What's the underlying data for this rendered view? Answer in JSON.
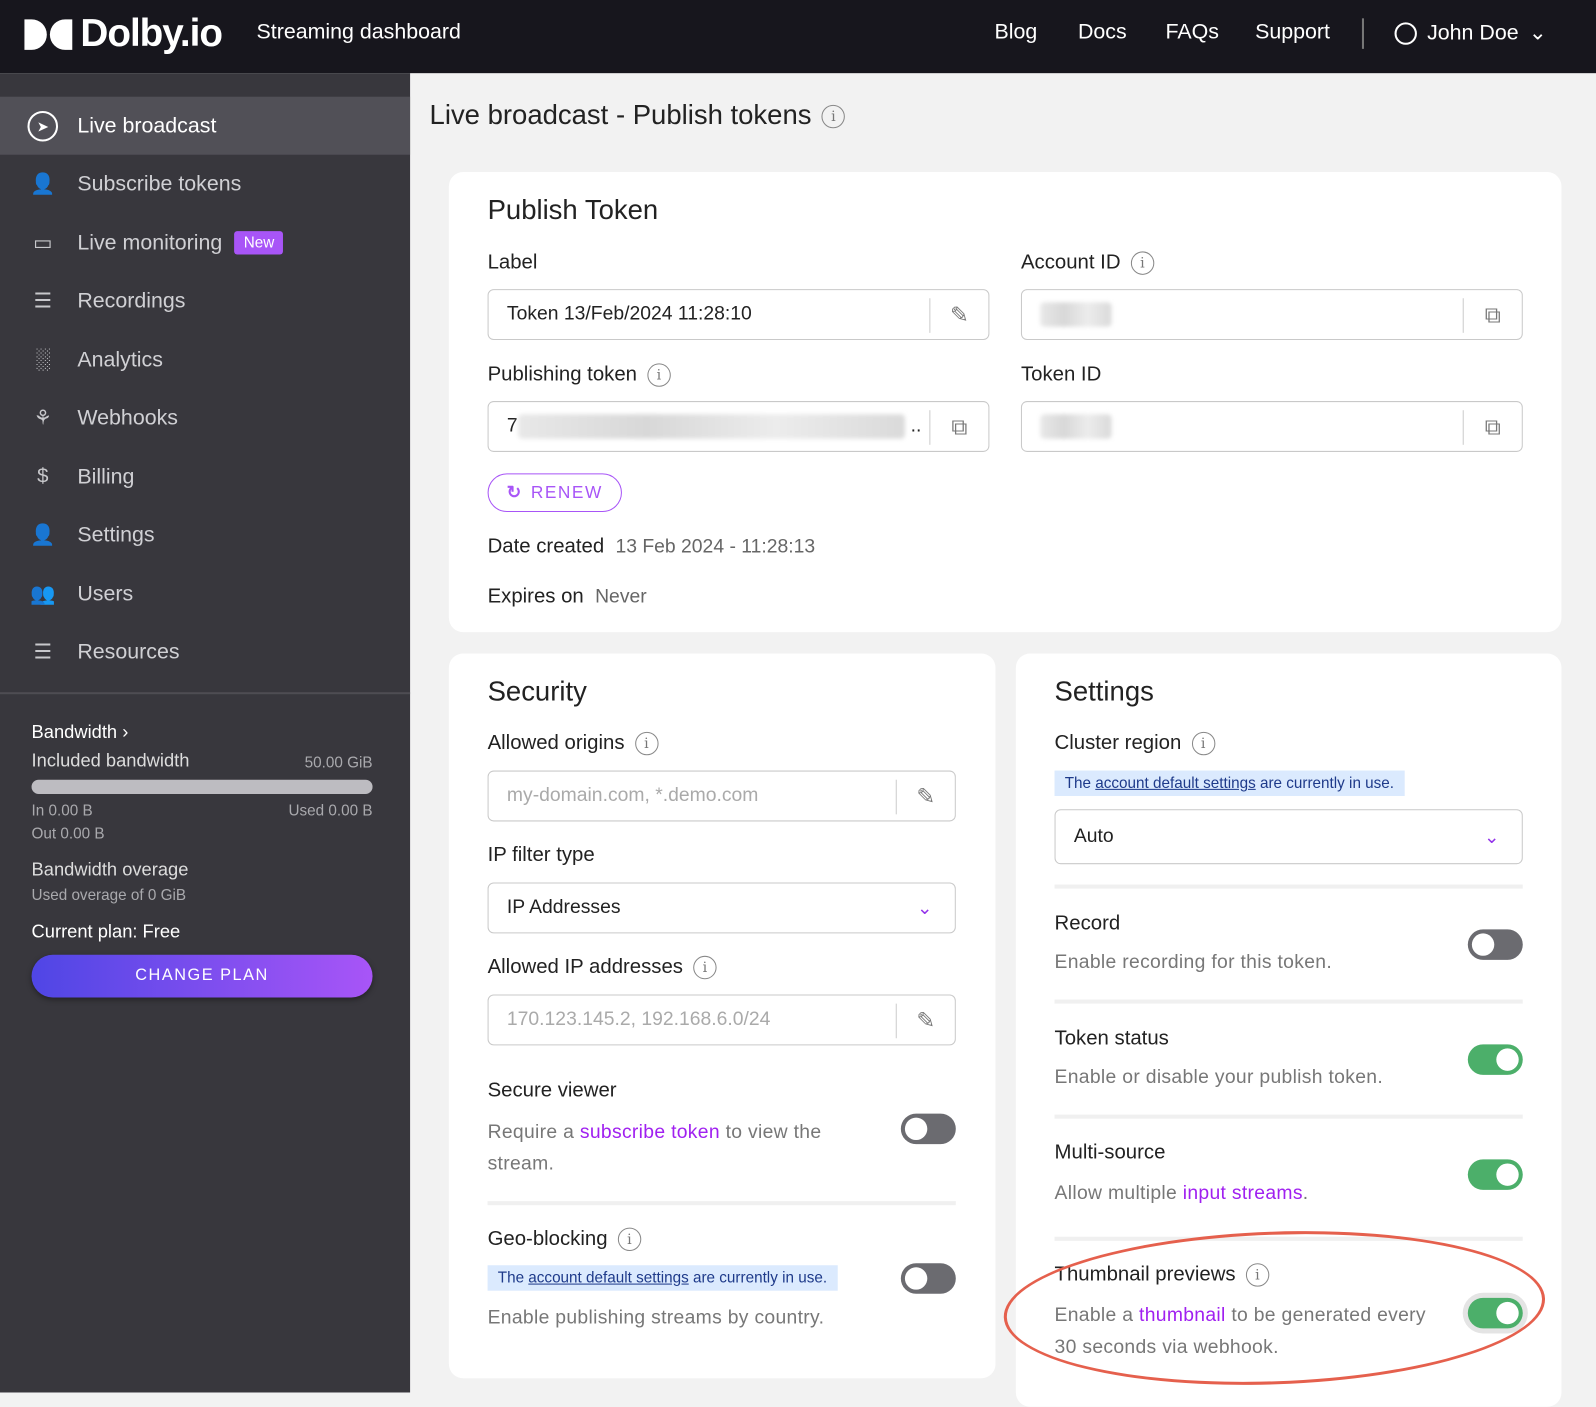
{
  "header": {
    "logo": "Dolby.io",
    "app_title": "Streaming dashboard",
    "nav": [
      "Blog",
      "Docs",
      "FAQs",
      "Support"
    ],
    "user": "John Doe"
  },
  "sidebar": {
    "items": [
      {
        "label": "Live broadcast",
        "icon": "broadcast-icon",
        "active": true
      },
      {
        "label": "Subscribe tokens",
        "icon": "user-shield-icon"
      },
      {
        "label": "Live monitoring",
        "icon": "monitor-icon",
        "badge": "New"
      },
      {
        "label": "Recordings",
        "icon": "layers-icon"
      },
      {
        "label": "Analytics",
        "icon": "bar-chart-icon"
      },
      {
        "label": "Webhooks",
        "icon": "webhook-icon"
      },
      {
        "label": "Billing",
        "icon": "dollar-icon"
      },
      {
        "label": "Settings",
        "icon": "user-gear-icon"
      },
      {
        "label": "Users",
        "icon": "users-icon"
      },
      {
        "label": "Resources",
        "icon": "list-icon"
      }
    ],
    "bandwidth": {
      "title": "Bandwidth",
      "included_label": "Included bandwidth",
      "included_value": "50.00 GiB",
      "usage_fraction": 0,
      "in": "In 0.00 B",
      "used": "Used 0.00 B",
      "out": "Out 0.00 B",
      "overage_title": "Bandwidth overage",
      "overage_text": "Used overage of 0 GiB",
      "plan": "Current plan: Free",
      "change_plan": "CHANGE PLAN"
    }
  },
  "page_title": "Live broadcast - Publish tokens",
  "publish_token": {
    "title": "Publish Token",
    "label_label": "Label",
    "label_value": "Token 13/Feb/2024 11:28:10",
    "account_id_label": "Account ID",
    "publishing_token_label": "Publishing token",
    "publishing_token_prefix": "7",
    "token_id_label": "Token ID",
    "renew": "RENEW",
    "date_created_label": "Date created",
    "date_created": "13 Feb 2024 - 11:28:13",
    "expires_label": "Expires on",
    "expires": "Never"
  },
  "security": {
    "title": "Security",
    "allowed_origins_label": "Allowed origins",
    "allowed_origins_placeholder": "my-domain.com, *.demo.com",
    "ip_filter_label": "IP filter type",
    "ip_filter_value": "IP Addresses",
    "allowed_ips_label": "Allowed IP addresses",
    "allowed_ips_placeholder": "170.123.145.2, 192.168.6.0/24",
    "secure_viewer": {
      "title": "Secure viewer",
      "pre": "Require a ",
      "link": "subscribe token",
      "post": " to view the stream.",
      "on": false
    },
    "geo": {
      "title": "Geo-blocking",
      "note_pre": "The ",
      "note_link": "account default settings",
      "note_post": " are currently in use.",
      "desc": "Enable publishing streams by country.",
      "on": false
    }
  },
  "settings": {
    "title": "Settings",
    "cluster_label": "Cluster region",
    "note_pre": "The ",
    "note_link": "account default settings",
    "note_post": " are currently in use.",
    "cluster_value": "Auto",
    "record": {
      "title": "Record",
      "desc": "Enable recording for this token.",
      "on": false
    },
    "status": {
      "title": "Token status",
      "desc": "Enable or disable your publish token.",
      "on": true
    },
    "multi": {
      "title": "Multi-source",
      "pre": "Allow multiple ",
      "link": "input streams",
      "post": ".",
      "on": true
    },
    "thumb": {
      "title": "Thumbnail previews",
      "pre": "Enable a ",
      "link": "thumbnail",
      "post": " to be generated every 30 seconds via webhook.",
      "on": true
    }
  },
  "colors": {
    "accent": "#a855f7",
    "toggle_on": "#4caf6a",
    "highlight": "#e5604d"
  }
}
